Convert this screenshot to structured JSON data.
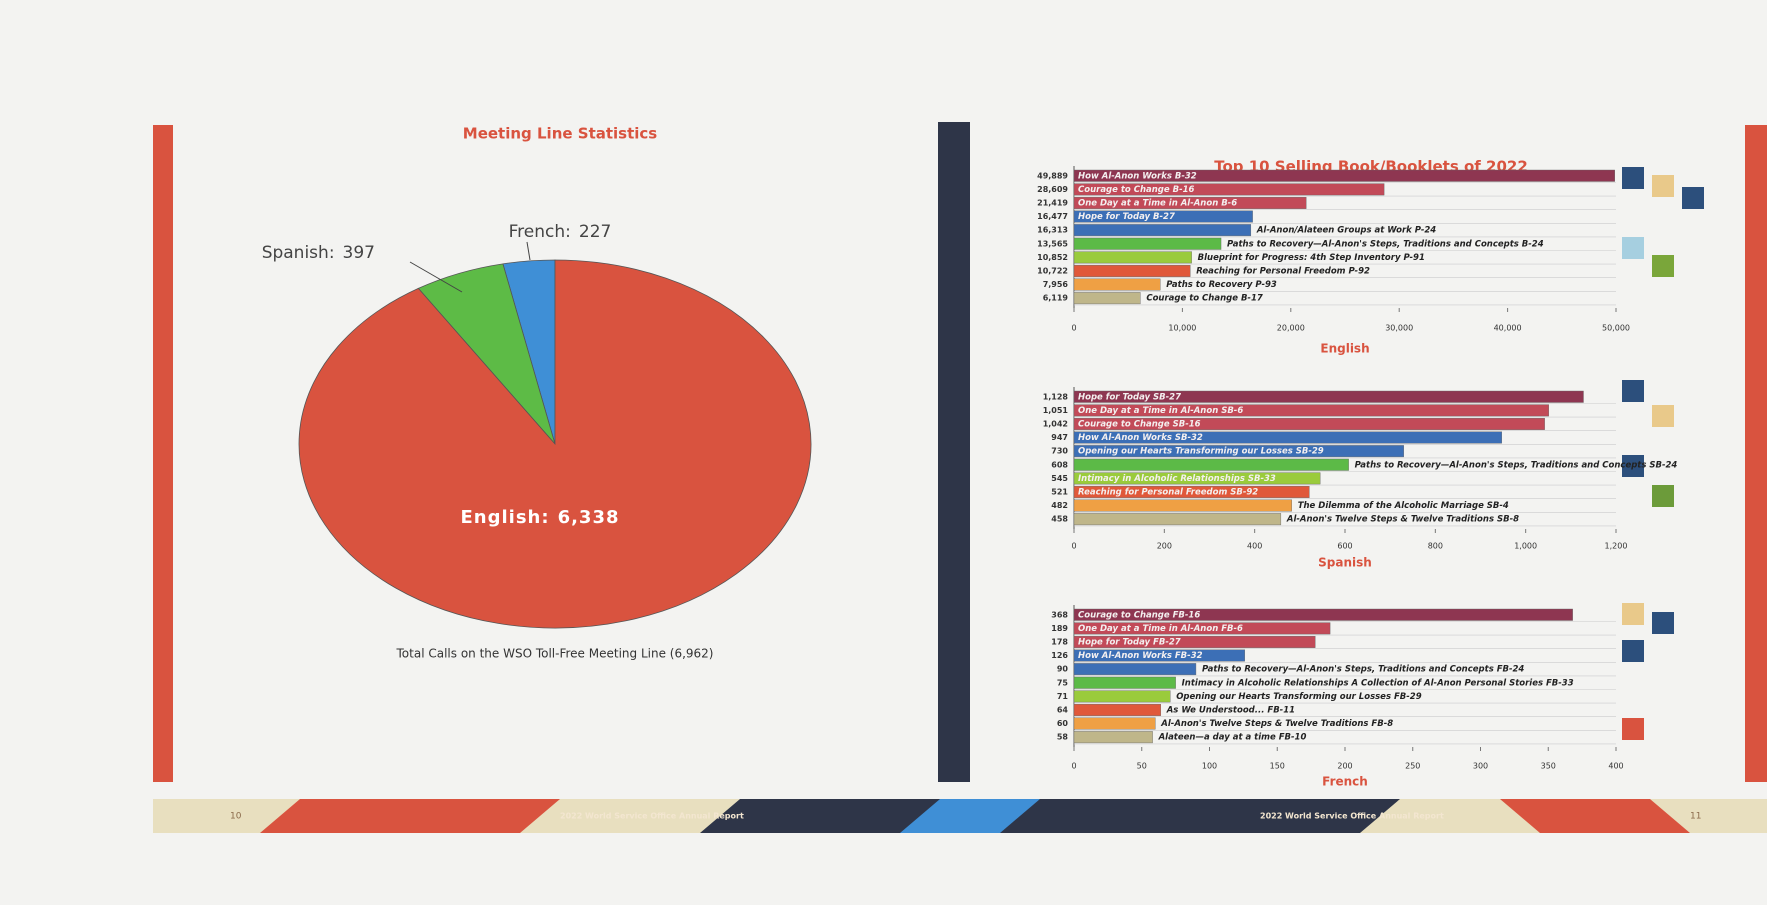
{
  "chart_data": [
    {
      "type": "pie",
      "title": "Meeting Line Statistics",
      "categories": [
        "English:",
        "Spanish:",
        "French:"
      ],
      "values": [
        6338,
        397,
        227
      ],
      "value_labels": [
        "6,338",
        "397",
        "227"
      ],
      "colors": [
        "#d9533f",
        "#5dbb46",
        "#3f8fd6"
      ],
      "caption": "Total Calls on the WSO Toll-Free Meeting Line (6,962)"
    },
    {
      "type": "bar",
      "orientation": "horizontal",
      "title": "Top 10 Selling Book/Booklets of 2022",
      "x_label": "English",
      "categories": [
        "How Al-Anon Works B-32",
        "Courage to Change B-16",
        "One Day at a Time in Al-Anon B-6",
        "Hope for Today B-27",
        "Al-Anon/Alateen Groups at Work P-24",
        "Paths to Recovery—Al-Anon's Steps, Traditions and Concepts B-24",
        "Blueprint for Progress: 4th Step Inventory P-91",
        "Reaching for Personal Freedom P-92",
        "Paths to Recovery P-93",
        "Courage to Change B-17"
      ],
      "values": [
        49889,
        28609,
        21419,
        16477,
        16313,
        13565,
        10852,
        10722,
        7956,
        6119
      ],
      "value_labels": [
        "49,889",
        "28,609",
        "21,419",
        "16,477",
        "16,313",
        "13,565",
        "10,852",
        "10,722",
        "7,956",
        "6,119"
      ],
      "colors": [
        "#8e3651",
        "#c24a58",
        "#c24a58",
        "#3c6fb6",
        "#3c6fb6",
        "#5cba47",
        "#9acb3c",
        "#e0583a",
        "#efa044",
        "#bfb68a"
      ],
      "xlim": [
        0,
        50000
      ],
      "xticks": [
        0,
        {
          "value": 10000,
          "label": "10,000"
        },
        {
          "value": 20000,
          "label": "20,000"
        },
        {
          "value": 30000,
          "label": "30,000"
        },
        {
          "value": 40000,
          "label": "40,000"
        },
        {
          "value": 50000,
          "label": "50,000"
        }
      ]
    },
    {
      "type": "bar",
      "orientation": "horizontal",
      "x_label": "Spanish",
      "categories": [
        "Hope for Today SB-27",
        "One Day at a Time in Al-Anon SB-6",
        "Courage to Change SB-16",
        "How Al-Anon Works SB-32",
        "Opening our Hearts Transforming our Losses SB-29",
        "Paths to Recovery—Al-Anon's Steps, Traditions and Concepts SB-24",
        "Intimacy in Alcoholic Relationships SB-33",
        "Reaching for Personal Freedom SB-92",
        "The Dilemma of the Alcoholic Marriage SB-4",
        "Al-Anon's Twelve Steps & Twelve Traditions SB-8"
      ],
      "values": [
        1128,
        1051,
        1042,
        947,
        730,
        608,
        545,
        521,
        482,
        458
      ],
      "value_labels": [
        "1,128",
        "1,051",
        "1,042",
        "947",
        "730",
        "608",
        "545",
        "521",
        "482",
        "458"
      ],
      "colors": [
        "#8e3651",
        "#c24a58",
        "#c24a58",
        "#3c6fb6",
        "#3c6fb6",
        "#5cba47",
        "#9acb3c",
        "#e0583a",
        "#efa044",
        "#bfb68a"
      ],
      "xlim": [
        0,
        1200
      ],
      "xticks": [
        0,
        200,
        400,
        600,
        800,
        {
          "value": 1000,
          "label": "1,000"
        },
        {
          "value": 1200,
          "label": "1,200"
        }
      ]
    },
    {
      "type": "bar",
      "orientation": "horizontal",
      "x_label": "French",
      "categories": [
        "Courage to Change FB-16",
        "One Day at a Time in Al-Anon FB-6",
        "Hope for Today FB-27",
        "How Al-Anon Works FB-32",
        "Paths to Recovery—Al-Anon's Steps, Traditions and Concepts FB-24",
        "Intimacy in Alcoholic Relationships A Collection of Al-Anon Personal Stories FB-33",
        "Opening our Hearts Transforming our Losses FB-29",
        "As We Understood... FB-11",
        "Al-Anon's Twelve Steps & Twelve Traditions FB-8",
        "Alateen—a day at a time FB-10"
      ],
      "values": [
        368,
        189,
        178,
        126,
        90,
        75,
        71,
        64,
        60,
        58
      ],
      "colors": [
        "#8e3651",
        "#c24a58",
        "#c24a58",
        "#3c6fb6",
        "#3c6fb6",
        "#5cba47",
        "#9acb3c",
        "#e0583a",
        "#efa044",
        "#bfb68a"
      ],
      "xlim": [
        0,
        400
      ],
      "xticks": [
        0,
        50,
        100,
        150,
        200,
        250,
        300,
        350,
        400
      ]
    }
  ],
  "footer": {
    "left_page": "10",
    "left_text": "2022 World Service Office Annual Report",
    "right_text": "2022 World Service Office Annual Report",
    "right_page": "11"
  }
}
